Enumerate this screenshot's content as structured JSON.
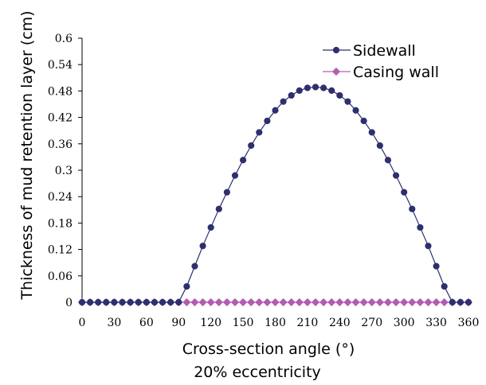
{
  "chart_data": {
    "type": "line",
    "xlabel": "Cross-section angle (°)",
    "xlabel_sub": "20% eccentricity",
    "ylabel": "Thickness of mud retention layer (cm)",
    "xlim": [
      0,
      360
    ],
    "ylim": [
      0,
      0.6
    ],
    "x_ticks": [
      "0",
      "30",
      "60",
      "90",
      "120",
      "150",
      "180",
      "210",
      "240",
      "270",
      "300",
      "330",
      "360"
    ],
    "y_ticks": [
      "0",
      "0.06",
      "0.12",
      "0.18",
      "0.24",
      "0.3",
      "0.36",
      "0.42",
      "0.48",
      "0.54",
      "0.6"
    ],
    "grid": false,
    "legend_position": "top-right",
    "x": [
      0,
      7.5,
      15,
      22.5,
      30,
      37.5,
      45,
      52.5,
      60,
      67.5,
      75,
      82.5,
      90,
      97.5,
      105,
      112.5,
      120,
      127.5,
      135,
      142.5,
      150,
      157.5,
      165,
      172.5,
      180,
      187.5,
      195,
      202.5,
      210,
      217.5,
      225,
      232.5,
      240,
      247.5,
      255,
      262.5,
      270,
      277.5,
      285,
      292.5,
      300,
      307.5,
      315,
      322.5,
      330,
      337.5,
      345,
      352.5,
      360
    ],
    "series": [
      {
        "name": "Sidewall",
        "color": "#2e2f6e",
        "marker": "circle",
        "values": [
          0,
          0,
          0,
          0,
          0,
          0,
          0,
          0,
          0,
          0,
          0,
          0,
          0,
          0.036,
          0.082,
          0.128,
          0.17,
          0.212,
          0.25,
          0.288,
          0.323,
          0.356,
          0.386,
          0.412,
          0.436,
          0.456,
          0.47,
          0.481,
          0.487,
          0.489,
          0.487,
          0.481,
          0.47,
          0.456,
          0.436,
          0.412,
          0.386,
          0.356,
          0.323,
          0.288,
          0.25,
          0.212,
          0.17,
          0.128,
          0.082,
          0.036,
          0,
          0,
          0
        ]
      },
      {
        "name": "Casing wall",
        "color": "#b35db3",
        "marker": "diamond",
        "values": [
          0,
          0,
          0,
          0,
          0,
          0,
          0,
          0,
          0,
          0,
          0,
          0,
          0,
          0,
          0,
          0,
          0,
          0,
          0,
          0,
          0,
          0,
          0,
          0,
          0,
          0,
          0,
          0,
          0,
          0,
          0,
          0,
          0,
          0,
          0,
          0,
          0,
          0,
          0,
          0,
          0,
          0,
          0,
          0,
          0,
          0,
          0,
          0,
          0
        ]
      }
    ]
  }
}
